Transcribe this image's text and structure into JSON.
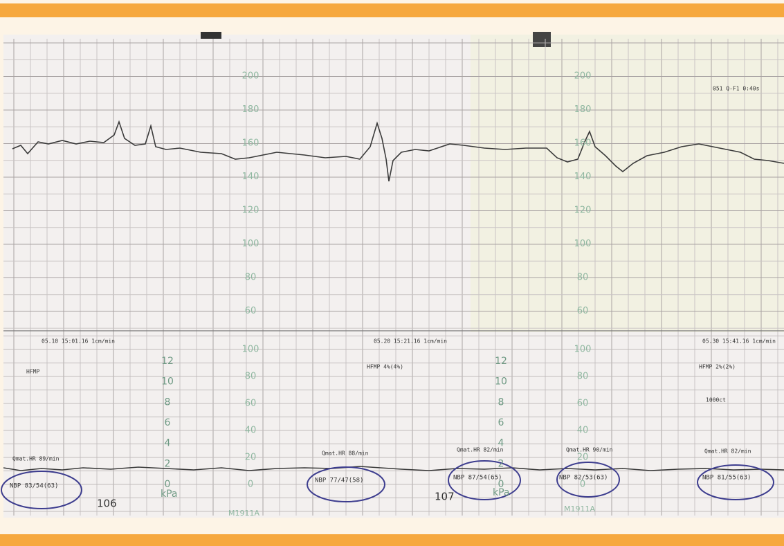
{
  "top_scale": [
    200,
    180,
    160,
    140,
    120,
    100,
    80,
    60
  ],
  "lower_scale": [
    100,
    80,
    60,
    40,
    20,
    0
  ],
  "kpa_scale": [
    12,
    10,
    8,
    6,
    4,
    2,
    0
  ],
  "kpa_unit": "kPa",
  "header_right": "051 Q-F1 0:40s",
  "annotations": [
    "05.10 15:01.16 1cm/min",
    "HFMP",
    "05.20 15:21.16 1cm/min",
    "HFMP 4%(4%)",
    "05.30 15:41.16 1cm/min",
    "HFMP 2%(2%)",
    "1000ct",
    "Qmat.HR 89/min",
    "Qmat.HR 88/min",
    "Qmat.HR 82/min",
    "Qmat.HR 90/min",
    "Qmat.HR 82/min"
  ],
  "nbp_readings": [
    "NBP 83/54(63)",
    "NBP 77/47(58)",
    "NBP 87/54(65)",
    "NBP 82/53(63)",
    "NBP 81/55(63)"
  ],
  "page_numbers": [
    "106",
    "107"
  ],
  "paper_code": "M1911A"
}
